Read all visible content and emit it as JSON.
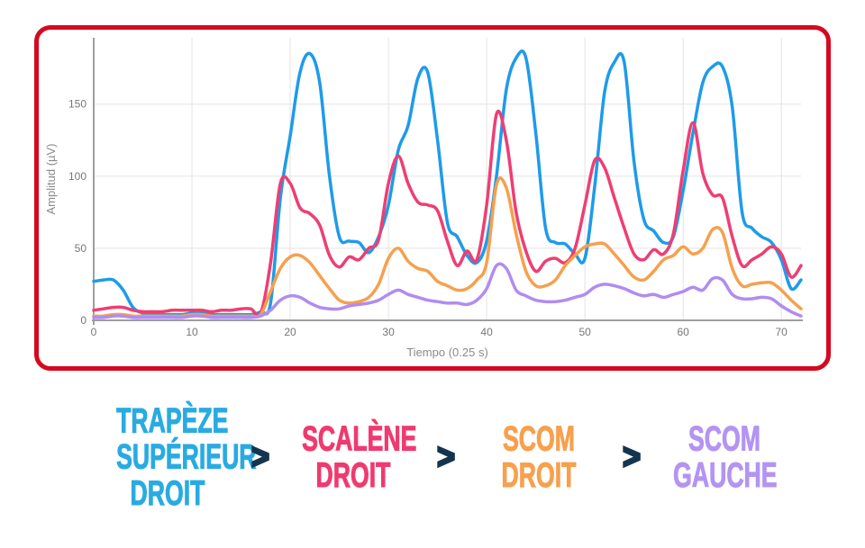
{
  "figure": {
    "border_color": "#D50920",
    "background": "#FFFFFF"
  },
  "chart_data": {
    "type": "line",
    "title": "",
    "xlabel": "Tiempo (0.25 s)",
    "ylabel": "Amplitud (µV)",
    "xlim": [
      0,
      72
    ],
    "ylim": [
      0,
      196
    ],
    "x_ticks": [
      0,
      10,
      20,
      30,
      40,
      50,
      60,
      70
    ],
    "y_ticks": [
      0,
      50,
      100,
      150
    ],
    "grid": true,
    "legend_position": "none",
    "x_start": 0,
    "x_step": 1,
    "axis_color": "#9E9E9E",
    "grid_color": "#E3E3E3",
    "tick_color": "#777777",
    "axis_title_color": "#8A8A8A",
    "series": [
      {
        "name": "Trapèze supérieur droit",
        "slug": "trapeze-superieur-droit",
        "color": "#1E9BE9",
        "values": [
          27,
          28,
          28,
          21,
          9,
          5,
          4,
          4,
          4,
          4,
          5,
          5,
          4,
          4,
          4,
          4,
          4,
          6,
          12,
          85,
          128,
          172,
          185,
          165,
          100,
          58,
          55,
          54,
          47,
          58,
          80,
          118,
          135,
          168,
          172,
          125,
          68,
          58,
          45,
          40,
          55,
          100,
          160,
          182,
          182,
          130,
          64,
          54,
          53,
          46,
          43,
          93,
          158,
          179,
          179,
          110,
          70,
          62,
          54,
          58,
          90,
          130,
          165,
          176,
          176,
          148,
          75,
          64,
          58,
          54,
          42,
          22,
          28
        ]
      },
      {
        "name": "Scalène droit",
        "slug": "scalene-droit",
        "color": "#EE3E74",
        "values": [
          7,
          8,
          9,
          9,
          7,
          6,
          6,
          6,
          7,
          7,
          7,
          7,
          6,
          7,
          7,
          8,
          8,
          5,
          40,
          95,
          95,
          78,
          74,
          66,
          45,
          37,
          44,
          42,
          50,
          56,
          95,
          114,
          95,
          82,
          80,
          76,
          55,
          38,
          48,
          42,
          80,
          143,
          125,
          75,
          48,
          34,
          41,
          43,
          40,
          50,
          80,
          111,
          106,
          85,
          64,
          46,
          42,
          49,
          46,
          60,
          104,
          137,
          102,
          87,
          85,
          58,
          38,
          42,
          46,
          51,
          46,
          30,
          38
        ]
      },
      {
        "name": "SCOM droit",
        "slug": "scom-droit",
        "color": "#F6A04E",
        "values": [
          3,
          3,
          4,
          4,
          3,
          3,
          3,
          3,
          3,
          3,
          4,
          4,
          3,
          3,
          3,
          3,
          3,
          4,
          20,
          36,
          44,
          45,
          40,
          31,
          22,
          14,
          12,
          13,
          16,
          25,
          43,
          50,
          41,
          36,
          34,
          27,
          24,
          21,
          22,
          28,
          40,
          94,
          92,
          60,
          34,
          24,
          24,
          28,
          38,
          45,
          51,
          53,
          53,
          46,
          38,
          30,
          28,
          34,
          42,
          45,
          51,
          46,
          50,
          63,
          61,
          36,
          24,
          25,
          26,
          26,
          21,
          14,
          8
        ]
      },
      {
        "name": "SCOM gauche",
        "slug": "scom-gauche",
        "color": "#B18CF0",
        "values": [
          2,
          2,
          3,
          3,
          2,
          2,
          2,
          2,
          2,
          2,
          3,
          3,
          2,
          2,
          2,
          2,
          2,
          3,
          7,
          14,
          17,
          16,
          12,
          9,
          8,
          8,
          10,
          11,
          12,
          14,
          18,
          21,
          18,
          16,
          14,
          13,
          12,
          12,
          11,
          14,
          22,
          38,
          36,
          21,
          17,
          14,
          13,
          13,
          14,
          16,
          18,
          23,
          25,
          24,
          22,
          19,
          17,
          18,
          16,
          18,
          20,
          23,
          21,
          29,
          28,
          18,
          15,
          15,
          16,
          15,
          10,
          6,
          3
        ]
      }
    ]
  },
  "ranking": {
    "separator": ">",
    "separator_color": "#14344F",
    "items": [
      {
        "slug": "trapeze-superieur-droit",
        "lines": [
          "TRAPÈZE",
          "SUPÉRIEUR",
          "DROIT"
        ],
        "color": "#29ABE2"
      },
      {
        "slug": "scalene-droit",
        "lines": [
          "SCALÈNE",
          "DROIT"
        ],
        "color": "#EF3A70"
      },
      {
        "slug": "scom-droit",
        "lines": [
          "SCOM",
          "DROIT"
        ],
        "color": "#F7A04D"
      },
      {
        "slug": "scom-gauche",
        "lines": [
          "SCOM",
          "GAUCHE"
        ],
        "color": "#B394F2"
      }
    ]
  }
}
